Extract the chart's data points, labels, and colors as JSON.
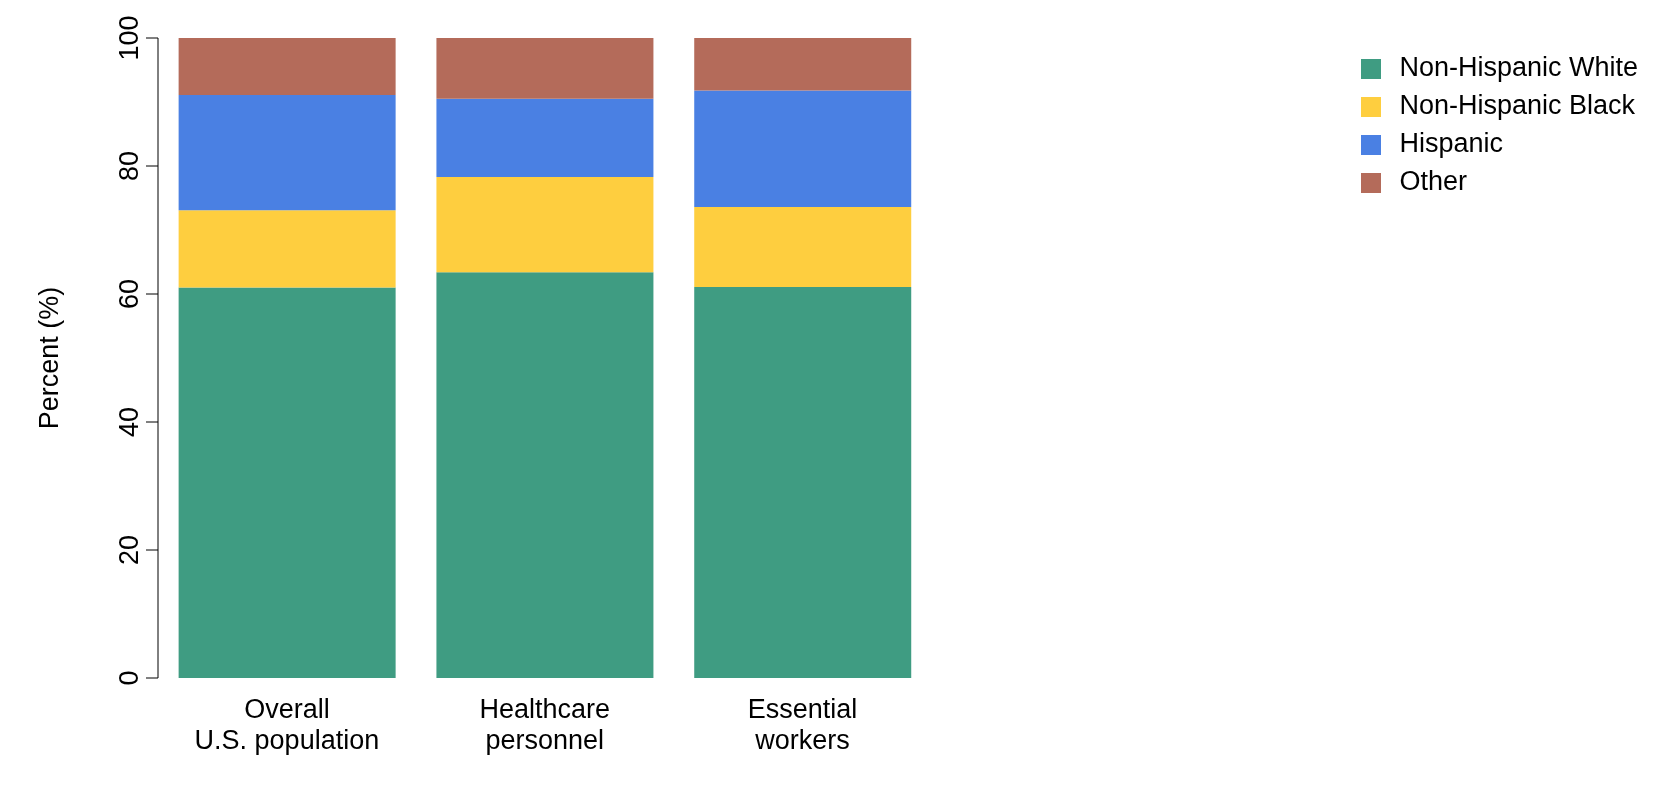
{
  "chart_data": {
    "type": "bar",
    "stacked": true,
    "ylabel": "Percent (%)",
    "categories": [
      "Overall\nU.S. population",
      "Healthcare\npersonnel",
      "Essential\nworkers"
    ],
    "series": [
      {
        "name": "Non-Hispanic White",
        "color": "#3f9c82",
        "values": [
          61.0,
          63.4,
          61.1
        ]
      },
      {
        "name": "Non-Hispanic Black",
        "color": "#fece3f",
        "values": [
          12.1,
          14.9,
          12.5
        ]
      },
      {
        "name": "Hispanic",
        "color": "#4a80e3",
        "values": [
          18.0,
          12.2,
          18.2
        ]
      },
      {
        "name": "Other",
        "color": "#b46b5a",
        "values": [
          8.9,
          9.5,
          8.2
        ]
      }
    ],
    "ylim": [
      0,
      100
    ],
    "yticks": [
      0,
      20,
      40,
      60,
      80,
      100
    ],
    "grid": false,
    "legend": "top right"
  }
}
